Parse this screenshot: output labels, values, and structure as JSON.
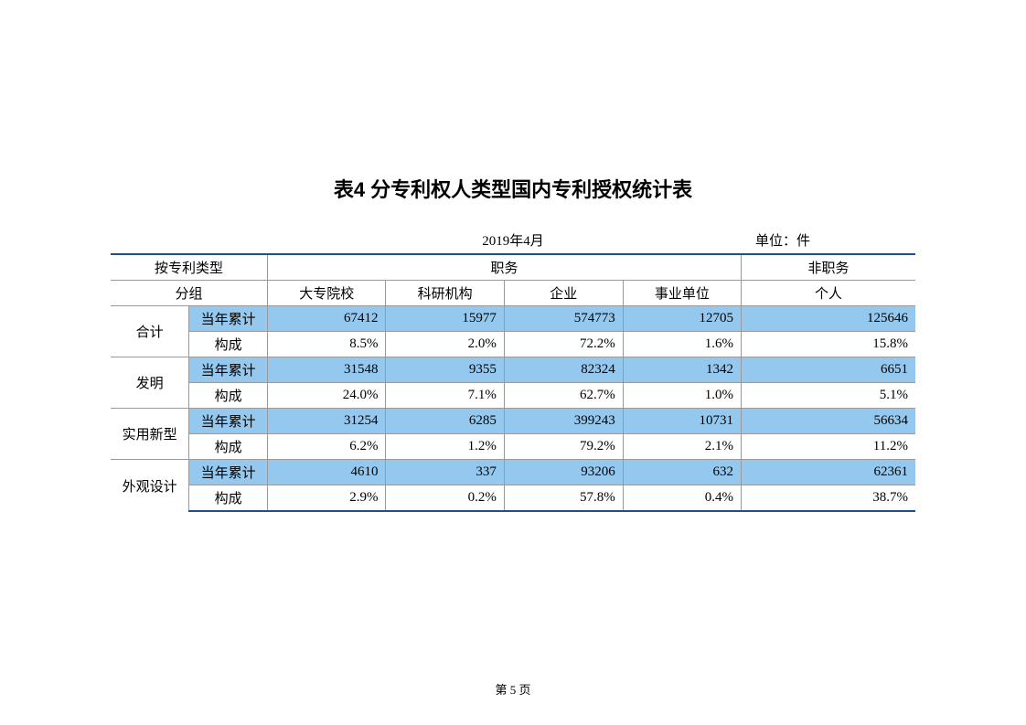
{
  "title": "表4 分专利权人类型国内专利授权统计表",
  "date": "2019年4月",
  "unit": "单位：件",
  "footer": "第 5 页",
  "headers": {
    "group": "按专利类型",
    "group2": "分组",
    "duty": "职务",
    "nonduty": "非职务",
    "cols": [
      "大专院校",
      "科研机构",
      "企业",
      "事业单位",
      "个人"
    ]
  },
  "rowLabels": {
    "cum": "当年累计",
    "comp": "构成"
  },
  "categories": [
    {
      "name": "合计",
      "cum": [
        "67412",
        "15977",
        "574773",
        "12705",
        "125646"
      ],
      "comp": [
        "8.5%",
        "2.0%",
        "72.2%",
        "1.6%",
        "15.8%"
      ]
    },
    {
      "name": "发明",
      "cum": [
        "31548",
        "9355",
        "82324",
        "1342",
        "6651"
      ],
      "comp": [
        "24.0%",
        "7.1%",
        "62.7%",
        "1.0%",
        "5.1%"
      ]
    },
    {
      "name": "实用新型",
      "cum": [
        "31254",
        "6285",
        "399243",
        "10731",
        "56634"
      ],
      "comp": [
        "6.2%",
        "1.2%",
        "79.2%",
        "2.1%",
        "11.2%"
      ]
    },
    {
      "name": "外观设计",
      "cum": [
        "4610",
        "337",
        "93206",
        "632",
        "62361"
      ],
      "comp": [
        "2.9%",
        "0.2%",
        "57.8%",
        "0.4%",
        "38.7%"
      ]
    }
  ],
  "style": {
    "shade_bg": "#95c8ef",
    "border_heavy": "#1f4f8f",
    "border_light": "#999999",
    "page_bg": "#ffffff"
  }
}
